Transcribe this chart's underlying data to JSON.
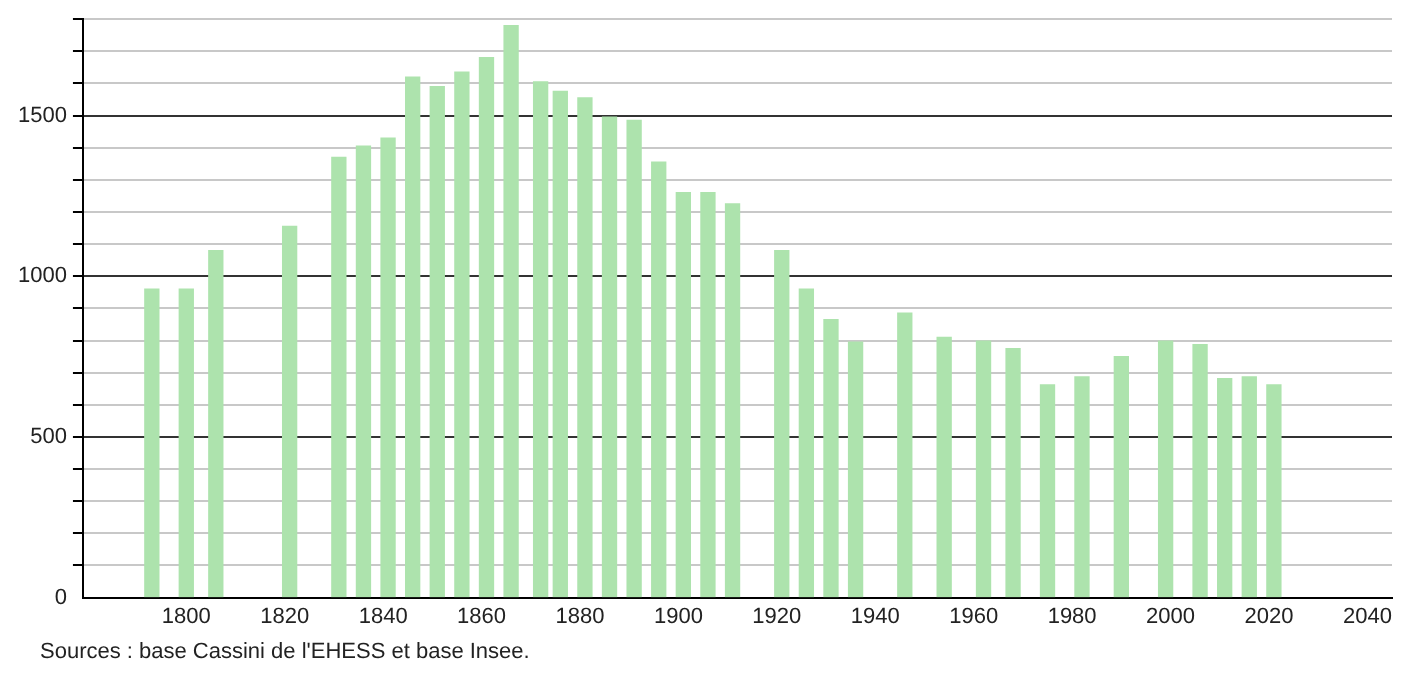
{
  "chart_data": {
    "type": "bar",
    "x": [
      1793,
      1800,
      1806,
      1821,
      1831,
      1836,
      1841,
      1846,
      1851,
      1856,
      1861,
      1866,
      1872,
      1876,
      1881,
      1886,
      1891,
      1896,
      1901,
      1906,
      1911,
      1921,
      1926,
      1931,
      1936,
      1946,
      1954,
      1962,
      1968,
      1975,
      1982,
      1990,
      1999,
      2006,
      2011,
      2016,
      2021
    ],
    "values": [
      960,
      960,
      1080,
      1155,
      1370,
      1405,
      1430,
      1620,
      1590,
      1635,
      1680,
      1780,
      1605,
      1575,
      1555,
      1495,
      1485,
      1355,
      1260,
      1260,
      1225,
      1080,
      960,
      865,
      795,
      885,
      810,
      798,
      775,
      662,
      687,
      750,
      798,
      787,
      681,
      687,
      662
    ],
    "color": "#ade3ad",
    "xlim": [
      1779,
      2045
    ],
    "xticks": [
      1800,
      1820,
      1840,
      1860,
      1880,
      1900,
      1920,
      1940,
      1960,
      1980,
      2000,
      2020,
      2040
    ],
    "ylim": [
      0,
      1800
    ],
    "yticks": [
      0,
      {
        "value": 100,
        "label": null
      },
      {
        "value": 200,
        "label": null
      },
      {
        "value": 300,
        "label": null
      },
      {
        "value": 400,
        "label": null
      },
      500,
      {
        "value": 600,
        "label": null
      },
      {
        "value": 700,
        "label": null
      },
      {
        "value": 800,
        "label": null
      },
      {
        "value": 900,
        "label": null
      },
      1000,
      {
        "value": 1100,
        "label": null
      },
      {
        "value": 1200,
        "label": null
      },
      {
        "value": 1300,
        "label": null
      },
      {
        "value": 1400,
        "label": null
      },
      1500,
      {
        "value": 1600,
        "label": null
      },
      {
        "value": 1700,
        "label": null
      },
      {
        "value": 1800,
        "label": null
      }
    ],
    "grid": "y",
    "annotations": [
      "Sources : base Cassini de l'EHESS et base Insee."
    ]
  }
}
